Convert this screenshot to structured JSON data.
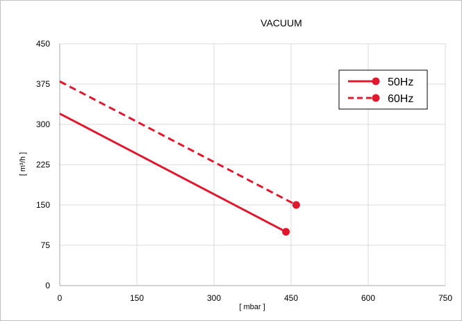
{
  "chart_data": {
    "type": "line",
    "title": "VACUUM",
    "xlabel": "[ mbar ]",
    "ylabel": "[ m³/h ]",
    "xlim": [
      0,
      750
    ],
    "ylim": [
      0,
      450
    ],
    "xticks": [
      0,
      150,
      300,
      450,
      600,
      750
    ],
    "yticks": [
      0,
      75,
      150,
      225,
      300,
      375,
      450
    ],
    "grid": true,
    "legend_position": "top-right",
    "series": [
      {
        "name": "50Hz",
        "line_style": "solid",
        "color": "#e0182d",
        "x": [
          0,
          440
        ],
        "y": [
          320,
          100
        ]
      },
      {
        "name": "60Hz",
        "line_style": "dashed",
        "color": "#e0182d",
        "x": [
          0,
          460
        ],
        "y": [
          380,
          150
        ]
      }
    ]
  }
}
